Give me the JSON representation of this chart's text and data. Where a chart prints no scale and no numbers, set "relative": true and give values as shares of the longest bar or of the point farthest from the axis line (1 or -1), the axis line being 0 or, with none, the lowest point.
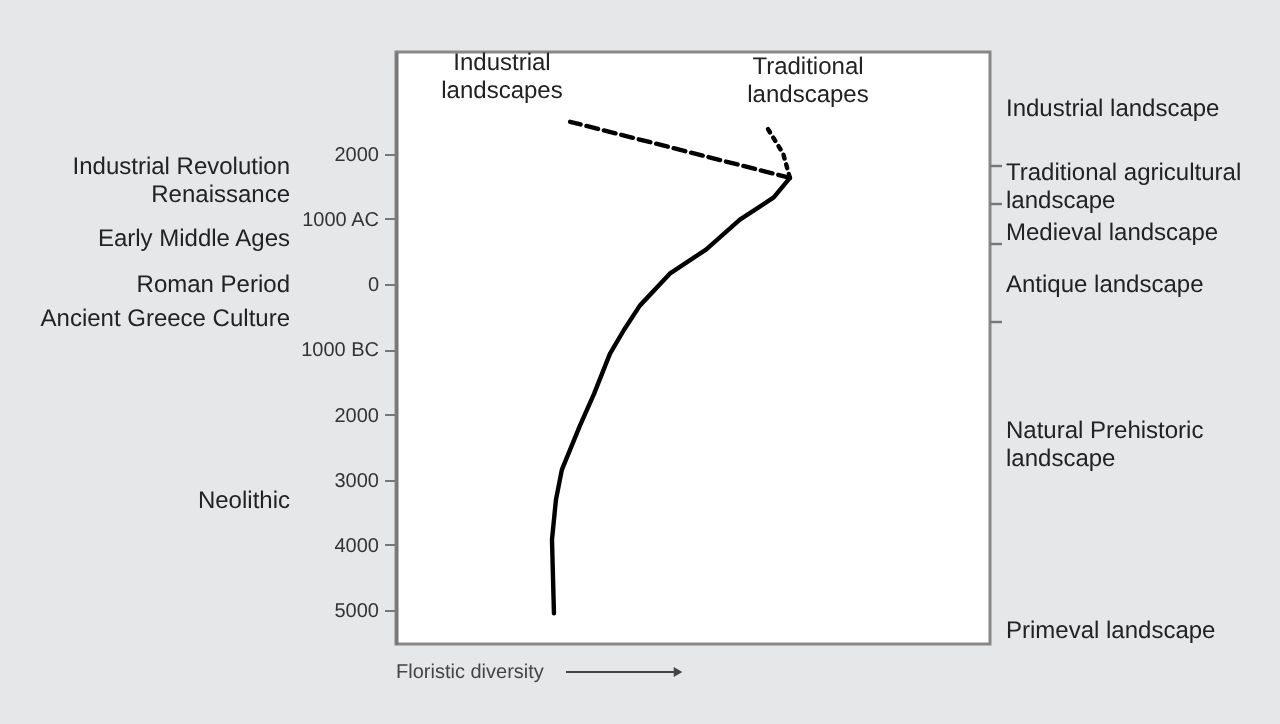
{
  "chart_data": {
    "type": "line",
    "orientation": "horizontal",
    "relative": true,
    "xlabel": "Floristic diversity",
    "ylim": [
      -5520,
      3560
    ],
    "yticks": [
      {
        "value": 2000,
        "label": "2000"
      },
      {
        "value": 1000,
        "label": "1000 AC"
      },
      0,
      {
        "value": -1000,
        "label": "1000 BC"
      },
      {
        "value": -2000,
        "label": "2000"
      },
      {
        "value": -3000,
        "label": "3000"
      },
      {
        "value": -4000,
        "label": "4000"
      },
      {
        "value": -5000,
        "label": "5000"
      }
    ],
    "grid": false,
    "legend": false,
    "marker": "none",
    "series": [
      {
        "color": "#000000",
        "line_style": "solid",
        "x": [
          -5050,
          -3920,
          -3310,
          -2850,
          -2170,
          -1680,
          -1070,
          -700,
          -330,
          160,
          530,
          990,
          1330,
          1630
        ],
        "values": [
          0.401,
          0.396,
          0.406,
          0.421,
          0.467,
          0.503,
          0.543,
          0.579,
          0.619,
          0.695,
          0.787,
          0.873,
          0.959,
          1.0
        ]
      },
      {
        "color": "#000000",
        "line_style": "dashed",
        "x": [
          1630,
          2490
        ],
        "values": [
          1.0,
          0.442
        ]
      },
      {
        "color": "#000000",
        "line_style": "dotted",
        "x": [
          1630,
          2000,
          2430
        ],
        "values": [
          1.0,
          0.983,
          0.939
        ]
      }
    ],
    "annotations": [
      "Industrial\nlandscapes",
      "Traditional\nlandscapes",
      "Industrial Revolution",
      "Renaissance",
      "Early Middle Ages",
      "Roman Period",
      "Ancient Greece Culture",
      "Neolithic",
      "Industrial landscape",
      "Traditional agricultural\nlandscape",
      "Medieval landscape",
      "Antique landscape",
      "Natural Prehistoric\nlandscape",
      "Primeval landscape"
    ]
  }
}
